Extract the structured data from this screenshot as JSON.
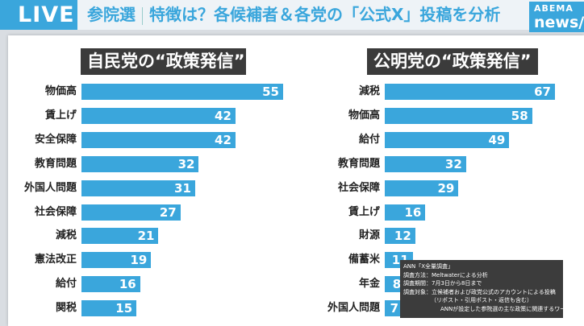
{
  "header": {
    "live": "LIVE",
    "title_a": "参院選",
    "title_b": "特徴は？各候補者＆各党の「公式X」投稿を分析",
    "logo_top": "ABEMA",
    "logo_bottom": "news/"
  },
  "chart_data": [
    {
      "type": "bar",
      "orientation": "horizontal",
      "title": "自民党の“政策発信”",
      "color": "#3aa6dc",
      "categories": [
        "物価高",
        "賃上げ",
        "安全保障",
        "教育問題",
        "外国人問題",
        "社会保障",
        "減税",
        "憲法改正",
        "給付",
        "関税"
      ],
      "values": [
        55,
        42,
        42,
        32,
        31,
        27,
        21,
        19,
        16,
        15
      ]
    },
    {
      "type": "bar",
      "orientation": "horizontal",
      "title": "公明党の“政策発信”",
      "color": "#3aa6dc",
      "categories": [
        "減税",
        "物価高",
        "給付",
        "教育問題",
        "社会保障",
        "賃上げ",
        "財源",
        "備蓄米",
        "年金",
        "外国人問題"
      ],
      "values": [
        67,
        58,
        49,
        32,
        29,
        16,
        12,
        11,
        8,
        7
      ]
    }
  ],
  "note": [
    "ANN「X全量調査」",
    "調査方法：Meltwaterによる分析",
    "調査期間：7月3日から8日まで",
    "調査対象：立候補者および政党公式のアカウントによる投稿",
    "（リポスト・引用ポスト・返信も含む）",
    "ANNが設定した参院選の主な政策に関連するワード"
  ]
}
